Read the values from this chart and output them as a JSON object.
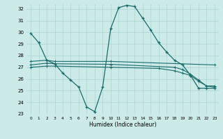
{
  "xlabel": "Humidex (Indice chaleur)",
  "bg_color": "#cceae8",
  "grid_color": "#aad4d2",
  "line_color": "#1a6b6b",
  "xlim": [
    -0.5,
    23.5
  ],
  "ylim": [
    23,
    32.4
  ],
  "yticks": [
    23,
    24,
    25,
    26,
    27,
    28,
    29,
    30,
    31,
    32
  ],
  "xticks": [
    0,
    1,
    2,
    3,
    4,
    5,
    6,
    7,
    8,
    9,
    10,
    11,
    12,
    13,
    14,
    15,
    16,
    17,
    18,
    19,
    20,
    21,
    22,
    23
  ],
  "line1_x": [
    0,
    1,
    2,
    3,
    4,
    5,
    6,
    7,
    8,
    9,
    10,
    11,
    12,
    13,
    14,
    15,
    16,
    17,
    18,
    19,
    20,
    21,
    22,
    23
  ],
  "line1_y": [
    29.9,
    29.1,
    27.6,
    27.3,
    26.5,
    25.9,
    25.3,
    23.6,
    23.2,
    25.3,
    30.3,
    32.1,
    32.3,
    32.2,
    31.2,
    30.2,
    29.1,
    28.3,
    27.6,
    27.2,
    26.3,
    25.2,
    25.2,
    25.2
  ],
  "line2_x": [
    0,
    2,
    3,
    10,
    23
  ],
  "line2_y": [
    27.5,
    27.6,
    27.5,
    27.5,
    27.2
  ],
  "line3_x": [
    0,
    2,
    3,
    10,
    16,
    18,
    19,
    20,
    21,
    22,
    23
  ],
  "line3_y": [
    27.0,
    27.1,
    27.1,
    27.0,
    26.9,
    26.7,
    26.5,
    26.3,
    25.8,
    25.4,
    25.3
  ],
  "line4_x": [
    0,
    2,
    3,
    10,
    18,
    19,
    20,
    21,
    22,
    23
  ],
  "line4_y": [
    27.2,
    27.35,
    27.3,
    27.25,
    27.0,
    26.8,
    26.4,
    25.9,
    25.4,
    25.4
  ]
}
